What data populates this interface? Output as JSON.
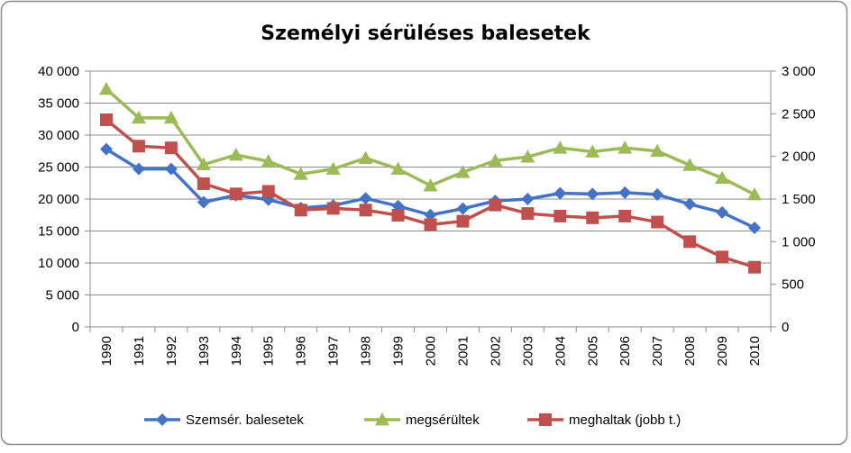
{
  "chart_data": {
    "type": "line",
    "title": "Személyi sérüléses balesetek",
    "x": [
      "1990",
      "1991",
      "1992",
      "1993",
      "1994",
      "1995",
      "1996",
      "1997",
      "1998",
      "1999",
      "2000",
      "2001",
      "2002",
      "2003",
      "2004",
      "2005",
      "2006",
      "2007",
      "2008",
      "2009",
      "2010"
    ],
    "y_left": {
      "min": 0,
      "max": 40000,
      "step": 5000,
      "ticks": [
        "0",
        "5 000",
        "10 000",
        "15 000",
        "20 000",
        "25 000",
        "30 000",
        "35 000",
        "40 000"
      ]
    },
    "y_right": {
      "min": 0,
      "max": 3000,
      "step": 500,
      "ticks": [
        "0",
        "500",
        "1 000",
        "1 500",
        "2 000",
        "2 500",
        "3 000"
      ]
    },
    "grid": true,
    "legend_position": "bottom",
    "series": [
      {
        "name": "Szemsér. balesetek",
        "axis": "left",
        "color": "#4472C4",
        "marker": "diamond",
        "values": [
          27800,
          24700,
          24700,
          19500,
          20600,
          19900,
          18600,
          19000,
          20100,
          18900,
          17500,
          18500,
          19700,
          20000,
          20900,
          20800,
          21000,
          20700,
          19200,
          17900,
          15500
        ]
      },
      {
        "name": "megsérültek",
        "axis": "left",
        "color": "#9BBB59",
        "marker": "triangle",
        "values": [
          37200,
          32700,
          32700,
          25400,
          26900,
          25900,
          23900,
          24700,
          26400,
          24700,
          22100,
          24200,
          26000,
          26600,
          28000,
          27400,
          28000,
          27500,
          25300,
          23300,
          20700
        ]
      },
      {
        "name": "meghaltak (jobb t.)",
        "axis": "right",
        "color": "#C0504D",
        "marker": "square",
        "values": [
          2430,
          2120,
          2100,
          1680,
          1560,
          1590,
          1370,
          1390,
          1370,
          1310,
          1200,
          1240,
          1430,
          1330,
          1300,
          1280,
          1300,
          1230,
          1000,
          820,
          700
        ]
      }
    ]
  }
}
